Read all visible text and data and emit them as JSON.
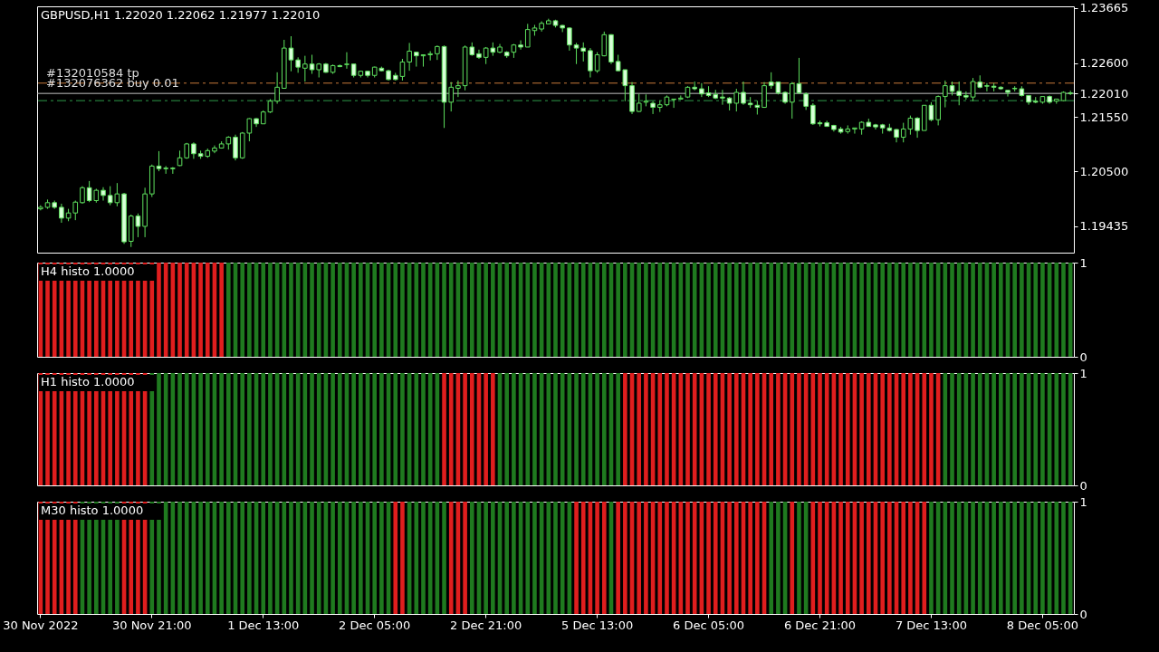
{
  "chart_data": [
    {
      "type": "candlestick",
      "title": "GBPUSD,H1  1.22020 1.22062 1.21977 1.22010",
      "categories": [
        null,
        null,
        null,
        null,
        null,
        null,
        null,
        null,
        null,
        null,
        null,
        null,
        null,
        null,
        null,
        null,
        null,
        null,
        null,
        null,
        null,
        null,
        null,
        null,
        null,
        null,
        null,
        null,
        null,
        null,
        null,
        null,
        null,
        null,
        null,
        null,
        null,
        null,
        null,
        null,
        null,
        null,
        null,
        null,
        null,
        null,
        null,
        null,
        null,
        null,
        null,
        null,
        null,
        null,
        null,
        null,
        null,
        null,
        null,
        null,
        null,
        null,
        null,
        null,
        null,
        null,
        null,
        null,
        null,
        null,
        null,
        null,
        null,
        null,
        null,
        null,
        null,
        null,
        null,
        null,
        null,
        null,
        null,
        null,
        null,
        null,
        null,
        null,
        null,
        null,
        null,
        null,
        null,
        null,
        null,
        null,
        null,
        null,
        null,
        null,
        null,
        null,
        null,
        null,
        null,
        null,
        null,
        null,
        null,
        null,
        null,
        null,
        null,
        null,
        null,
        null,
        null,
        null,
        null,
        null,
        null,
        null,
        null,
        null,
        null,
        null,
        null,
        null,
        null,
        null,
        null,
        null,
        null,
        null,
        null,
        null,
        null,
        null,
        null,
        null,
        null,
        null,
        null,
        null,
        null,
        null,
        null,
        null,
        null
      ],
      "ohlc": [
        [
          1.1977,
          1.1984,
          1.1974,
          1.198
        ],
        [
          1.198,
          1.1995,
          1.1977,
          1.1989
        ],
        [
          1.1989,
          1.1993,
          1.1977,
          1.198
        ],
        [
          1.198,
          1.1987,
          1.195,
          1.1959
        ],
        [
          1.1959,
          1.1977,
          1.1953,
          1.1969
        ],
        [
          1.1969,
          1.1993,
          1.1955,
          1.199
        ],
        [
          1.1989,
          1.2021,
          1.1987,
          1.2018
        ],
        [
          1.2018,
          1.2031,
          1.199,
          1.1993
        ],
        [
          1.1993,
          1.2016,
          1.1989,
          1.2013
        ],
        [
          1.2013,
          1.2019,
          1.1993,
          1.2003
        ],
        [
          1.2003,
          1.2021,
          1.1984,
          1.1989
        ],
        [
          1.1989,
          1.2027,
          1.1982,
          1.2006
        ],
        [
          1.2006,
          1.2008,
          1.1909,
          1.1913
        ],
        [
          1.1914,
          1.1966,
          1.1903,
          1.1963
        ],
        [
          1.1963,
          1.1968,
          1.1922,
          1.1943
        ],
        [
          1.1943,
          1.2018,
          1.1922,
          1.2006
        ],
        [
          1.2006,
          1.2063,
          1.2,
          1.206
        ],
        [
          1.206,
          1.2089,
          1.205,
          1.2055
        ],
        [
          1.2056,
          1.206,
          1.2045,
          1.2055
        ],
        [
          1.2056,
          1.2058,
          1.2045,
          1.2055
        ],
        [
          1.2061,
          1.209,
          1.206,
          1.2076
        ],
        [
          1.2076,
          1.2105,
          1.2074,
          1.2103
        ],
        [
          1.2103,
          1.2106,
          1.2074,
          1.2084
        ],
        [
          1.2084,
          1.209,
          1.2074,
          1.2079
        ],
        [
          1.2079,
          1.2094,
          1.2076,
          1.209
        ],
        [
          1.2089,
          1.21,
          1.2085,
          1.2095
        ],
        [
          1.2095,
          1.2108,
          1.2094,
          1.2103
        ],
        [
          1.2103,
          1.2118,
          1.2092,
          1.2116
        ],
        [
          1.2116,
          1.2121,
          1.2071,
          1.2076
        ],
        [
          1.2076,
          1.2126,
          1.2074,
          1.2124
        ],
        [
          1.2124,
          1.2153,
          1.2108,
          1.2152
        ],
        [
          1.2152,
          1.2153,
          1.2136,
          1.2142
        ],
        [
          1.2142,
          1.2168,
          1.2142,
          1.2165
        ],
        [
          1.2165,
          1.219,
          1.2163,
          1.2186
        ],
        [
          1.2186,
          1.2242,
          1.2181,
          1.2213
        ],
        [
          1.2211,
          1.2305,
          1.221,
          1.2289
        ],
        [
          1.2289,
          1.2312,
          1.2244,
          1.2266
        ],
        [
          1.2266,
          1.2271,
          1.2241,
          1.2252
        ],
        [
          1.225,
          1.2274,
          1.2224,
          1.2258
        ],
        [
          1.2258,
          1.2276,
          1.2239,
          1.2247
        ],
        [
          1.2247,
          1.226,
          1.2232,
          1.2258
        ],
        [
          1.2258,
          1.226,
          1.2241,
          1.2242
        ],
        [
          1.2242,
          1.2257,
          1.2239,
          1.2255
        ],
        [
          1.2255,
          1.2257,
          1.2252,
          1.2253
        ],
        [
          1.2257,
          1.2281,
          1.2249,
          1.2258
        ],
        [
          1.2258,
          1.2258,
          1.2232,
          1.2236
        ],
        [
          1.2236,
          1.2245,
          1.2232,
          1.2244
        ],
        [
          1.2244,
          1.2245,
          1.2232,
          1.2236
        ],
        [
          1.2236,
          1.2253,
          1.2232,
          1.2252
        ],
        [
          1.225,
          1.2253,
          1.2244,
          1.2245
        ],
        [
          1.2245,
          1.2247,
          1.2226,
          1.2228
        ],
        [
          1.2236,
          1.2241,
          1.2226,
          1.2228
        ],
        [
          1.2234,
          1.2268,
          1.2226,
          1.2262
        ],
        [
          1.2262,
          1.2299,
          1.2245,
          1.2283
        ],
        [
          1.2281,
          1.2281,
          1.2253,
          1.2274
        ],
        [
          1.2274,
          1.2276,
          1.2253,
          1.2276
        ],
        [
          1.2276,
          1.2283,
          1.2265,
          1.2278
        ],
        [
          1.2278,
          1.2294,
          1.2266,
          1.2292
        ],
        [
          1.2292,
          1.2294,
          1.2134,
          1.2184
        ],
        [
          1.2184,
          1.2223,
          1.2166,
          1.2213
        ],
        [
          1.2211,
          1.2226,
          1.2194,
          1.2216
        ],
        [
          1.2216,
          1.2294,
          1.2207,
          1.2291
        ],
        [
          1.2291,
          1.23,
          1.2274,
          1.2276
        ],
        [
          1.2278,
          1.2286,
          1.2268,
          1.2271
        ],
        [
          1.2271,
          1.2291,
          1.2258,
          1.2289
        ],
        [
          1.2289,
          1.23,
          1.2274,
          1.2281
        ],
        [
          1.2281,
          1.2297,
          1.2279,
          1.2291
        ],
        [
          1.2281,
          1.2283,
          1.227,
          1.2274
        ],
        [
          1.2281,
          1.2297,
          1.227,
          1.2295
        ],
        [
          1.2295,
          1.2304,
          1.2286,
          1.2291
        ],
        [
          1.2291,
          1.2336,
          1.2291,
          1.2325
        ],
        [
          1.2323,
          1.2334,
          1.2313,
          1.2328
        ],
        [
          1.2326,
          1.2341,
          1.2321,
          1.2337
        ],
        [
          1.2336,
          1.2346,
          1.2336,
          1.2342
        ],
        [
          1.2342,
          1.2344,
          1.2329,
          1.2333
        ],
        [
          1.2333,
          1.2334,
          1.232,
          1.2328
        ],
        [
          1.2328,
          1.2329,
          1.2284,
          1.2295
        ],
        [
          1.2295,
          1.2299,
          1.2258,
          1.2289
        ],
        [
          1.2289,
          1.23,
          1.2263,
          1.2283
        ],
        [
          1.2284,
          1.2289,
          1.2232,
          1.2245
        ],
        [
          1.2245,
          1.2281,
          1.2241,
          1.2276
        ],
        [
          1.2274,
          1.2321,
          1.2273,
          1.2315
        ],
        [
          1.2315,
          1.2316,
          1.2258,
          1.2262
        ],
        [
          1.2263,
          1.2276,
          1.2244,
          1.2245
        ],
        [
          1.2247,
          1.2247,
          1.2186,
          1.2216
        ],
        [
          1.2216,
          1.2223,
          1.2161,
          1.2166
        ],
        [
          1.2166,
          1.22,
          1.2165,
          1.2182
        ],
        [
          1.2184,
          1.2199,
          1.2176,
          1.2186
        ],
        [
          1.2182,
          1.2186,
          1.2161,
          1.2174
        ],
        [
          1.2174,
          1.2187,
          1.2165,
          1.2179
        ],
        [
          1.2179,
          1.2197,
          1.2176,
          1.2194
        ],
        [
          1.2189,
          1.219,
          1.2173,
          1.219
        ],
        [
          1.219,
          1.2197,
          1.2189,
          1.2192
        ],
        [
          1.2194,
          1.2215,
          1.2192,
          1.2213
        ],
        [
          1.2213,
          1.2224,
          1.2207,
          1.221
        ],
        [
          1.221,
          1.2221,
          1.2194,
          1.22
        ],
        [
          1.2202,
          1.2215,
          1.2194,
          1.2197
        ],
        [
          1.2199,
          1.2208,
          1.219,
          1.2192
        ],
        [
          1.2194,
          1.2208,
          1.2179,
          1.2192
        ],
        [
          1.2192,
          1.2194,
          1.2168,
          1.2182
        ],
        [
          1.2182,
          1.221,
          1.2166,
          1.2203
        ],
        [
          1.2203,
          1.2224,
          1.2179,
          1.2182
        ],
        [
          1.2182,
          1.2194,
          1.2173,
          1.2179
        ],
        [
          1.2178,
          1.2187,
          1.216,
          1.2174
        ],
        [
          1.2174,
          1.2223,
          1.2173,
          1.2216
        ],
        [
          1.2223,
          1.2242,
          1.221,
          1.2216
        ],
        [
          1.2223,
          1.2224,
          1.2199,
          1.2202
        ],
        [
          1.2203,
          1.2205,
          1.2181,
          1.2184
        ],
        [
          1.2184,
          1.2223,
          1.2152,
          1.222
        ],
        [
          1.222,
          1.227,
          1.22,
          1.2202
        ],
        [
          1.22,
          1.2203,
          1.2169,
          1.2176
        ],
        [
          1.2178,
          1.2182,
          1.214,
          1.2142
        ],
        [
          1.2144,
          1.2148,
          1.2137,
          1.2142
        ],
        [
          1.2144,
          1.2148,
          1.2136,
          1.2137
        ],
        [
          1.2139,
          1.214,
          1.2127,
          1.2131
        ],
        [
          1.2132,
          1.2136,
          1.2123,
          1.2126
        ],
        [
          1.2127,
          1.2139,
          1.2123,
          1.2132
        ],
        [
          1.2132,
          1.2134,
          1.2123,
          1.2134
        ],
        [
          1.2132,
          1.2147,
          1.2121,
          1.2145
        ],
        [
          1.2145,
          1.2152,
          1.2136,
          1.2137
        ],
        [
          1.214,
          1.2142,
          1.2131,
          1.2136
        ],
        [
          1.214,
          1.2142,
          1.2123,
          1.2134
        ],
        [
          1.2134,
          1.2142,
          1.2127,
          1.2129
        ],
        [
          1.2131,
          1.2132,
          1.2106,
          1.2116
        ],
        [
          1.2116,
          1.2144,
          1.2106,
          1.2132
        ],
        [
          1.2132,
          1.2158,
          1.2121,
          1.2153
        ],
        [
          1.2153,
          1.2155,
          1.2115,
          1.2129
        ],
        [
          1.2129,
          1.2178,
          1.2129,
          1.2178
        ],
        [
          1.2178,
          1.2184,
          1.2147,
          1.215
        ],
        [
          1.215,
          1.2197,
          1.2139,
          1.2195
        ],
        [
          1.2195,
          1.2226,
          1.2174,
          1.2216
        ],
        [
          1.2216,
          1.2224,
          1.2197,
          1.2205
        ],
        [
          1.2205,
          1.2224,
          1.2178,
          1.2197
        ],
        [
          1.2197,
          1.2205,
          1.2189,
          1.2194
        ],
        [
          1.2194,
          1.2231,
          1.2186,
          1.2224
        ],
        [
          1.2223,
          1.2236,
          1.2211,
          1.2213
        ],
        [
          1.2216,
          1.2221,
          1.2205,
          1.2215
        ],
        [
          1.2215,
          1.2221,
          1.2205,
          1.2213
        ],
        [
          1.2213,
          1.2215,
          1.2208,
          1.221
        ],
        [
          1.2207,
          1.2207,
          1.2195,
          1.2203
        ],
        [
          1.2211,
          1.2215,
          1.2205,
          1.221
        ],
        [
          1.221,
          1.2215,
          1.2195,
          1.2197
        ],
        [
          1.2197,
          1.2197,
          1.2179,
          1.2184
        ],
        [
          1.2186,
          1.2194,
          1.2182,
          1.2184
        ],
        [
          1.2184,
          1.2195,
          1.2181,
          1.2195
        ],
        [
          1.2195,
          1.2197,
          1.2181,
          1.2184
        ],
        [
          1.2186,
          1.219,
          1.2181,
          1.219
        ],
        [
          1.2187,
          1.2205,
          1.2186,
          1.2203
        ],
        [
          1.2202,
          1.22062,
          1.21977,
          1.2201
        ]
      ],
      "ylim": [
        1.1892,
        1.237
      ],
      "yticks": [
        1.19435,
        {
          "value": 1.205,
          "label": "1.20500"
        },
        {
          "value": 1.2155,
          "label": "1.21550"
        },
        {
          "value": 1.2201,
          "label": "1.22010"
        },
        {
          "value": 1.226,
          "label": "1.22600"
        },
        1.23665
      ],
      "ref_lines": [
        {
          "axis": "y",
          "value": 1.2221,
          "label": "#132010584 tp",
          "color": "#c87a3a",
          "line_style": "dashed"
        },
        {
          "axis": "y",
          "value": 1.2201,
          "label": "#132076362 buy 0.01",
          "color": "#c0c0c0",
          "line_style": "solid"
        },
        {
          "axis": "y",
          "value": 1.2187,
          "label": null,
          "color": "#2e9a4a",
          "line_style": "dashed"
        }
      ],
      "tick_labels": "y"
    },
    {
      "type": "bar",
      "title": "H4 histo 1.0000",
      "categories": [
        null,
        null,
        null,
        null,
        null,
        null,
        null,
        null,
        null,
        null,
        null,
        null,
        null,
        null,
        null,
        null,
        null,
        null,
        null,
        null,
        null,
        null,
        null,
        null,
        null,
        null,
        null,
        null,
        null,
        null,
        null,
        null,
        null,
        null,
        null,
        null,
        null,
        null,
        null,
        null,
        null,
        null,
        null,
        null,
        null,
        null,
        null,
        null,
        null,
        null,
        null,
        null,
        null,
        null,
        null,
        null,
        null,
        null,
        null,
        null,
        null,
        null,
        null,
        null,
        null,
        null,
        null,
        null,
        null,
        null,
        null,
        null,
        null,
        null,
        null,
        null,
        null,
        null,
        null,
        null,
        null,
        null,
        null,
        null,
        null,
        null,
        null,
        null,
        null,
        null,
        null,
        null,
        null,
        null,
        null,
        null,
        null,
        null,
        null,
        null,
        null,
        null,
        null,
        null,
        null,
        null,
        null,
        null,
        null,
        null,
        null,
        null,
        null,
        null,
        null,
        null,
        null,
        null,
        null,
        null,
        null,
        null,
        null,
        null,
        null,
        null,
        null,
        null,
        null,
        null,
        null,
        null,
        null,
        null,
        null,
        null,
        null,
        null,
        null,
        null,
        null,
        null,
        null,
        null,
        null,
        null,
        null,
        null,
        null
      ],
      "values": [
        1,
        1,
        1,
        1,
        1,
        1,
        1,
        1,
        1,
        1,
        1,
        1,
        1,
        1,
        1,
        1,
        1,
        1,
        1,
        1,
        1,
        1,
        1,
        1,
        1,
        1,
        1,
        1,
        1,
        1,
        1,
        1,
        1,
        1,
        1,
        1,
        1,
        1,
        1,
        1,
        1,
        1,
        1,
        1,
        1,
        1,
        1,
        1,
        1,
        1,
        1,
        1,
        1,
        1,
        1,
        1,
        1,
        1,
        1,
        1,
        1,
        1,
        1,
        1,
        1,
        1,
        1,
        1,
        1,
        1,
        1,
        1,
        1,
        1,
        1,
        1,
        1,
        1,
        1,
        1,
        1,
        1,
        1,
        1,
        1,
        1,
        1,
        1,
        1,
        1,
        1,
        1,
        1,
        1,
        1,
        1,
        1,
        1,
        1,
        1,
        1,
        1,
        1,
        1,
        1,
        1,
        1,
        1,
        1,
        1,
        1,
        1,
        1,
        1,
        1,
        1,
        1,
        1,
        1,
        1,
        1,
        1,
        1,
        1,
        1,
        1,
        1,
        1,
        1,
        1,
        1,
        1,
        1,
        1,
        1,
        1,
        1,
        1,
        1,
        1,
        1,
        1,
        1,
        1,
        1,
        1,
        1,
        1,
        1
      ],
      "colors": [
        "#e01e1e",
        "#e01e1e",
        "#e01e1e",
        "#e01e1e",
        "#e01e1e",
        "#e01e1e",
        "#e01e1e",
        "#e01e1e",
        "#e01e1e",
        "#e01e1e",
        "#e01e1e",
        "#e01e1e",
        "#e01e1e",
        "#e01e1e",
        "#e01e1e",
        "#e01e1e",
        "#e01e1e",
        "#e01e1e",
        "#e01e1e",
        "#e01e1e",
        "#e01e1e",
        "#e01e1e",
        "#e01e1e",
        "#e01e1e",
        "#e01e1e",
        "#e01e1e",
        "#e01e1e",
        "#1f7a1f",
        "#1f7a1f",
        "#1f7a1f",
        "#1f7a1f",
        "#1f7a1f",
        "#1f7a1f",
        "#1f7a1f",
        "#1f7a1f",
        "#1f7a1f",
        "#1f7a1f",
        "#1f7a1f",
        "#1f7a1f",
        "#1f7a1f",
        "#1f7a1f",
        "#1f7a1f",
        "#1f7a1f",
        "#1f7a1f",
        "#1f7a1f",
        "#1f7a1f",
        "#1f7a1f",
        "#1f7a1f",
        "#1f7a1f",
        "#1f7a1f",
        "#1f7a1f",
        "#1f7a1f",
        "#1f7a1f",
        "#1f7a1f",
        "#1f7a1f",
        "#1f7a1f",
        "#1f7a1f",
        "#1f7a1f",
        "#1f7a1f",
        "#1f7a1f",
        "#1f7a1f",
        "#1f7a1f",
        "#1f7a1f",
        "#1f7a1f",
        "#1f7a1f",
        "#1f7a1f",
        "#1f7a1f",
        "#1f7a1f",
        "#1f7a1f",
        "#1f7a1f",
        "#1f7a1f",
        "#1f7a1f",
        "#1f7a1f",
        "#1f7a1f",
        "#1f7a1f",
        "#1f7a1f",
        "#1f7a1f",
        "#1f7a1f",
        "#1f7a1f",
        "#1f7a1f",
        "#1f7a1f",
        "#1f7a1f",
        "#1f7a1f",
        "#1f7a1f",
        "#1f7a1f",
        "#1f7a1f",
        "#1f7a1f",
        "#1f7a1f",
        "#1f7a1f",
        "#1f7a1f",
        "#1f7a1f",
        "#1f7a1f",
        "#1f7a1f",
        "#1f7a1f",
        "#1f7a1f",
        "#1f7a1f",
        "#1f7a1f",
        "#1f7a1f",
        "#1f7a1f",
        "#1f7a1f",
        "#1f7a1f",
        "#1f7a1f",
        "#1f7a1f",
        "#1f7a1f",
        "#1f7a1f",
        "#1f7a1f",
        "#1f7a1f",
        "#1f7a1f",
        "#1f7a1f",
        "#1f7a1f",
        "#1f7a1f",
        "#1f7a1f",
        "#1f7a1f",
        "#1f7a1f",
        "#1f7a1f",
        "#1f7a1f",
        "#1f7a1f",
        "#1f7a1f",
        "#1f7a1f",
        "#1f7a1f",
        "#1f7a1f",
        "#1f7a1f",
        "#1f7a1f",
        "#1f7a1f",
        "#1f7a1f",
        "#1f7a1f",
        "#1f7a1f",
        "#1f7a1f",
        "#1f7a1f",
        "#1f7a1f",
        "#1f7a1f",
        "#1f7a1f",
        "#1f7a1f",
        "#1f7a1f",
        "#1f7a1f",
        "#1f7a1f",
        "#1f7a1f",
        "#1f7a1f",
        "#1f7a1f",
        "#1f7a1f",
        "#1f7a1f",
        "#1f7a1f",
        "#1f7a1f",
        "#1f7a1f",
        "#1f7a1f",
        "#1f7a1f",
        "#1f7a1f",
        "#1f7a1f",
        "#1f7a1f"
      ],
      "ylim": [
        0,
        1
      ],
      "yticks": [
        0,
        1
      ],
      "tick_labels": "y"
    },
    {
      "type": "bar",
      "title": "H1 histo 1.0000",
      "categories": [
        null,
        null,
        null,
        null,
        null,
        null,
        null,
        null,
        null,
        null,
        null,
        null,
        null,
        null,
        null,
        null,
        null,
        null,
        null,
        null,
        null,
        null,
        null,
        null,
        null,
        null,
        null,
        null,
        null,
        null,
        null,
        null,
        null,
        null,
        null,
        null,
        null,
        null,
        null,
        null,
        null,
        null,
        null,
        null,
        null,
        null,
        null,
        null,
        null,
        null,
        null,
        null,
        null,
        null,
        null,
        null,
        null,
        null,
        null,
        null,
        null,
        null,
        null,
        null,
        null,
        null,
        null,
        null,
        null,
        null,
        null,
        null,
        null,
        null,
        null,
        null,
        null,
        null,
        null,
        null,
        null,
        null,
        null,
        null,
        null,
        null,
        null,
        null,
        null,
        null,
        null,
        null,
        null,
        null,
        null,
        null,
        null,
        null,
        null,
        null,
        null,
        null,
        null,
        null,
        null,
        null,
        null,
        null,
        null,
        null,
        null,
        null,
        null,
        null,
        null,
        null,
        null,
        null,
        null,
        null,
        null,
        null,
        null,
        null,
        null,
        null,
        null,
        null,
        null,
        null,
        null,
        null,
        null,
        null,
        null,
        null,
        null,
        null,
        null,
        null,
        null,
        null,
        null,
        null,
        null,
        null,
        null,
        null,
        null
      ],
      "values": [
        1,
        1,
        1,
        1,
        1,
        1,
        1,
        1,
        1,
        1,
        1,
        1,
        1,
        1,
        1,
        1,
        1,
        1,
        1,
        1,
        1,
        1,
        1,
        1,
        1,
        1,
        1,
        1,
        1,
        1,
        1,
        1,
        1,
        1,
        1,
        1,
        1,
        1,
        1,
        1,
        1,
        1,
        1,
        1,
        1,
        1,
        1,
        1,
        1,
        1,
        1,
        1,
        1,
        1,
        1,
        1,
        1,
        1,
        1,
        1,
        1,
        1,
        1,
        1,
        1,
        1,
        1,
        1,
        1,
        1,
        1,
        1,
        1,
        1,
        1,
        1,
        1,
        1,
        1,
        1,
        1,
        1,
        1,
        1,
        1,
        1,
        1,
        1,
        1,
        1,
        1,
        1,
        1,
        1,
        1,
        1,
        1,
        1,
        1,
        1,
        1,
        1,
        1,
        1,
        1,
        1,
        1,
        1,
        1,
        1,
        1,
        1,
        1,
        1,
        1,
        1,
        1,
        1,
        1,
        1,
        1,
        1,
        1,
        1,
        1,
        1,
        1,
        1,
        1,
        1,
        1,
        1,
        1,
        1,
        1,
        1,
        1,
        1,
        1,
        1,
        1,
        1,
        1,
        1,
        1,
        1,
        1,
        1,
        1
      ],
      "colors": [
        "#e01e1e",
        "#e01e1e",
        "#e01e1e",
        "#e01e1e",
        "#e01e1e",
        "#e01e1e",
        "#e01e1e",
        "#e01e1e",
        "#e01e1e",
        "#e01e1e",
        "#e01e1e",
        "#e01e1e",
        "#e01e1e",
        "#e01e1e",
        "#e01e1e",
        "#e01e1e",
        "#1f7a1f",
        "#1f7a1f",
        "#1f7a1f",
        "#1f7a1f",
        "#1f7a1f",
        "#1f7a1f",
        "#1f7a1f",
        "#1f7a1f",
        "#1f7a1f",
        "#1f7a1f",
        "#1f7a1f",
        "#1f7a1f",
        "#1f7a1f",
        "#1f7a1f",
        "#1f7a1f",
        "#1f7a1f",
        "#1f7a1f",
        "#1f7a1f",
        "#1f7a1f",
        "#1f7a1f",
        "#1f7a1f",
        "#1f7a1f",
        "#1f7a1f",
        "#1f7a1f",
        "#1f7a1f",
        "#1f7a1f",
        "#1f7a1f",
        "#1f7a1f",
        "#1f7a1f",
        "#1f7a1f",
        "#1f7a1f",
        "#1f7a1f",
        "#1f7a1f",
        "#1f7a1f",
        "#1f7a1f",
        "#1f7a1f",
        "#1f7a1f",
        "#1f7a1f",
        "#1f7a1f",
        "#1f7a1f",
        "#1f7a1f",
        "#1f7a1f",
        "#e01e1e",
        "#e01e1e",
        "#e01e1e",
        "#e01e1e",
        "#e01e1e",
        "#e01e1e",
        "#e01e1e",
        "#e01e1e",
        "#1f7a1f",
        "#1f7a1f",
        "#1f7a1f",
        "#1f7a1f",
        "#1f7a1f",
        "#1f7a1f",
        "#1f7a1f",
        "#1f7a1f",
        "#1f7a1f",
        "#1f7a1f",
        "#1f7a1f",
        "#1f7a1f",
        "#1f7a1f",
        "#1f7a1f",
        "#1f7a1f",
        "#1f7a1f",
        "#1f7a1f",
        "#1f7a1f",
        "#e01e1e",
        "#e01e1e",
        "#e01e1e",
        "#e01e1e",
        "#e01e1e",
        "#e01e1e",
        "#e01e1e",
        "#e01e1e",
        "#e01e1e",
        "#e01e1e",
        "#e01e1e",
        "#e01e1e",
        "#e01e1e",
        "#e01e1e",
        "#e01e1e",
        "#e01e1e",
        "#e01e1e",
        "#e01e1e",
        "#e01e1e",
        "#e01e1e",
        "#e01e1e",
        "#e01e1e",
        "#e01e1e",
        "#e01e1e",
        "#e01e1e",
        "#e01e1e",
        "#e01e1e",
        "#e01e1e",
        "#e01e1e",
        "#e01e1e",
        "#e01e1e",
        "#e01e1e",
        "#e01e1e",
        "#e01e1e",
        "#e01e1e",
        "#e01e1e",
        "#e01e1e",
        "#e01e1e",
        "#e01e1e",
        "#e01e1e",
        "#e01e1e",
        "#e01e1e",
        "#e01e1e",
        "#e01e1e",
        "#e01e1e",
        "#e01e1e",
        "#1f7a1f",
        "#1f7a1f",
        "#1f7a1f",
        "#1f7a1f",
        "#1f7a1f",
        "#1f7a1f",
        "#1f7a1f",
        "#1f7a1f",
        "#1f7a1f",
        "#1f7a1f",
        "#1f7a1f",
        "#1f7a1f",
        "#1f7a1f",
        "#1f7a1f",
        "#1f7a1f",
        "#1f7a1f",
        "#1f7a1f",
        "#1f7a1f",
        "#1f7a1f"
      ],
      "ylim": [
        0,
        1
      ],
      "yticks": [
        0,
        1
      ],
      "tick_labels": "y"
    },
    {
      "type": "bar",
      "title": "M30 histo 1.0000",
      "categories": [
        "30 Nov 2022",
        null,
        null,
        null,
        null,
        null,
        null,
        null,
        null,
        null,
        null,
        null,
        null,
        null,
        null,
        null,
        "30 Nov 21:00",
        null,
        null,
        null,
        null,
        null,
        null,
        null,
        null,
        null,
        null,
        null,
        null,
        null,
        null,
        null,
        "1 Dec 13:00",
        null,
        null,
        null,
        null,
        null,
        null,
        null,
        null,
        null,
        null,
        null,
        null,
        null,
        null,
        null,
        "2 Dec 05:00",
        null,
        null,
        null,
        null,
        null,
        null,
        null,
        null,
        null,
        null,
        null,
        null,
        null,
        null,
        null,
        "2 Dec 21:00",
        null,
        null,
        null,
        null,
        null,
        null,
        null,
        null,
        null,
        null,
        null,
        null,
        null,
        null,
        null,
        "5 Dec 13:00",
        null,
        null,
        null,
        null,
        null,
        null,
        null,
        null,
        null,
        null,
        null,
        null,
        null,
        null,
        null,
        "6 Dec 05:00",
        null,
        null,
        null,
        null,
        null,
        null,
        null,
        null,
        null,
        null,
        null,
        null,
        null,
        null,
        null,
        "6 Dec 21:00",
        null,
        null,
        null,
        null,
        null,
        null,
        null,
        null,
        null,
        null,
        null,
        null,
        null,
        null,
        null,
        "7 Dec 13:00",
        null,
        null,
        null,
        null,
        null,
        null,
        null,
        null,
        null,
        null,
        null,
        null,
        null,
        null,
        null,
        "8 Dec 05:00",
        null,
        null,
        null,
        null
      ],
      "values": [
        1,
        1,
        1,
        1,
        1,
        1,
        1,
        1,
        1,
        1,
        1,
        1,
        1,
        1,
        1,
        1,
        1,
        1,
        1,
        1,
        1,
        1,
        1,
        1,
        1,
        1,
        1,
        1,
        1,
        1,
        1,
        1,
        1,
        1,
        1,
        1,
        1,
        1,
        1,
        1,
        1,
        1,
        1,
        1,
        1,
        1,
        1,
        1,
        1,
        1,
        1,
        1,
        1,
        1,
        1,
        1,
        1,
        1,
        1,
        1,
        1,
        1,
        1,
        1,
        1,
        1,
        1,
        1,
        1,
        1,
        1,
        1,
        1,
        1,
        1,
        1,
        1,
        1,
        1,
        1,
        1,
        1,
        1,
        1,
        1,
        1,
        1,
        1,
        1,
        1,
        1,
        1,
        1,
        1,
        1,
        1,
        1,
        1,
        1,
        1,
        1,
        1,
        1,
        1,
        1,
        1,
        1,
        1,
        1,
        1,
        1,
        1,
        1,
        1,
        1,
        1,
        1,
        1,
        1,
        1,
        1,
        1,
        1,
        1,
        1,
        1,
        1,
        1,
        1,
        1,
        1,
        1,
        1,
        1,
        1,
        1,
        1,
        1,
        1,
        1,
        1,
        1,
        1,
        1,
        1,
        1,
        1,
        1,
        1
      ],
      "colors": [
        "#e01e1e",
        "#e01e1e",
        "#e01e1e",
        "#e01e1e",
        "#e01e1e",
        "#e01e1e",
        "#1f7a1f",
        "#1f7a1f",
        "#1f7a1f",
        "#1f7a1f",
        "#1f7a1f",
        "#1f7a1f",
        "#e01e1e",
        "#e01e1e",
        "#e01e1e",
        "#e01e1e",
        "#1f7a1f",
        "#1f7a1f",
        "#1f7a1f",
        "#1f7a1f",
        "#1f7a1f",
        "#1f7a1f",
        "#1f7a1f",
        "#1f7a1f",
        "#1f7a1f",
        "#1f7a1f",
        "#1f7a1f",
        "#1f7a1f",
        "#1f7a1f",
        "#1f7a1f",
        "#1f7a1f",
        "#1f7a1f",
        "#1f7a1f",
        "#1f7a1f",
        "#1f7a1f",
        "#1f7a1f",
        "#1f7a1f",
        "#1f7a1f",
        "#1f7a1f",
        "#1f7a1f",
        "#1f7a1f",
        "#1f7a1f",
        "#1f7a1f",
        "#1f7a1f",
        "#1f7a1f",
        "#1f7a1f",
        "#1f7a1f",
        "#1f7a1f",
        "#1f7a1f",
        "#1f7a1f",
        "#1f7a1f",
        "#e01e1e",
        "#e01e1e",
        "#1f7a1f",
        "#1f7a1f",
        "#1f7a1f",
        "#1f7a1f",
        "#1f7a1f",
        "#1f7a1f",
        "#e01e1e",
        "#e01e1e",
        "#e01e1e",
        "#1f7a1f",
        "#1f7a1f",
        "#1f7a1f",
        "#1f7a1f",
        "#1f7a1f",
        "#1f7a1f",
        "#1f7a1f",
        "#1f7a1f",
        "#1f7a1f",
        "#1f7a1f",
        "#1f7a1f",
        "#1f7a1f",
        "#1f7a1f",
        "#1f7a1f",
        "#1f7a1f",
        "#e01e1e",
        "#e01e1e",
        "#e01e1e",
        "#e01e1e",
        "#e01e1e",
        "#1f7a1f",
        "#e01e1e",
        "#e01e1e",
        "#e01e1e",
        "#e01e1e",
        "#e01e1e",
        "#e01e1e",
        "#e01e1e",
        "#e01e1e",
        "#e01e1e",
        "#e01e1e",
        "#e01e1e",
        "#e01e1e",
        "#e01e1e",
        "#e01e1e",
        "#e01e1e",
        "#e01e1e",
        "#e01e1e",
        "#e01e1e",
        "#e01e1e",
        "#e01e1e",
        "#e01e1e",
        "#e01e1e",
        "#1f7a1f",
        "#1f7a1f",
        "#1f7a1f",
        "#e01e1e",
        "#1f7a1f",
        "#1f7a1f",
        "#e01e1e",
        "#e01e1e",
        "#e01e1e",
        "#e01e1e",
        "#e01e1e",
        "#e01e1e",
        "#e01e1e",
        "#e01e1e",
        "#e01e1e",
        "#e01e1e",
        "#e01e1e",
        "#e01e1e",
        "#e01e1e",
        "#e01e1e",
        "#e01e1e",
        "#e01e1e",
        "#e01e1e",
        "#1f7a1f",
        "#1f7a1f",
        "#1f7a1f",
        "#1f7a1f",
        "#1f7a1f",
        "#1f7a1f",
        "#1f7a1f",
        "#1f7a1f",
        "#1f7a1f",
        "#1f7a1f",
        "#1f7a1f",
        "#1f7a1f",
        "#1f7a1f",
        "#1f7a1f",
        "#1f7a1f",
        "#1f7a1f",
        "#1f7a1f",
        "#1f7a1f",
        "#1f7a1f",
        "#1f7a1f",
        "#1f7a1f"
      ],
      "ylim": [
        0,
        1
      ],
      "yticks": [
        0,
        1
      ]
    }
  ]
}
